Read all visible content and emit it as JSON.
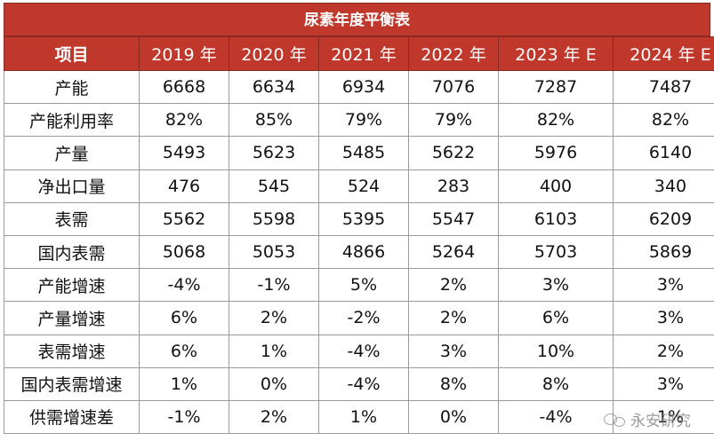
{
  "title": "尿素年度平衡表",
  "header": [
    "项目",
    "2019 年",
    "2020 年",
    "2021 年",
    "2022 年",
    "2023 年 E",
    "2024 年 E"
  ],
  "rows": [
    [
      "产能",
      "6668",
      "6634",
      "6934",
      "7076",
      "7287",
      "7487"
    ],
    [
      "产能利用率",
      "82%",
      "85%",
      "79%",
      "79%",
      "82%",
      "82%"
    ],
    [
      "产量",
      "5493",
      "5623",
      "5485",
      "5622",
      "5976",
      "6140"
    ],
    [
      "净出口量",
      "476",
      "545",
      "524",
      "283",
      "400",
      "340"
    ],
    [
      "表需",
      "5562",
      "5598",
      "5395",
      "5547",
      "6103",
      "6209"
    ],
    [
      "国内表需",
      "5068",
      "5053",
      "4866",
      "5264",
      "5703",
      "5869"
    ],
    [
      "产能增速",
      "-4%",
      "-1%",
      "5%",
      "2%",
      "3%",
      "3%"
    ],
    [
      "产量增速",
      "6%",
      "2%",
      "-2%",
      "2%",
      "6%",
      "3%"
    ],
    [
      "表需增速",
      "6%",
      "1%",
      "-4%",
      "3%",
      "10%",
      "2%"
    ],
    [
      "国内表需增速",
      "1%",
      "0%",
      "-4%",
      "8%",
      "8%",
      "3%"
    ],
    [
      "供需增速差",
      "-1%",
      "2%",
      "1%",
      "0%",
      "-4%",
      "1%"
    ]
  ],
  "watermark": {
    "text": "永安研究",
    "icon": "wechat-icon"
  },
  "colors": {
    "header_bg": "#c0382b",
    "header_text": "#ffffff"
  }
}
